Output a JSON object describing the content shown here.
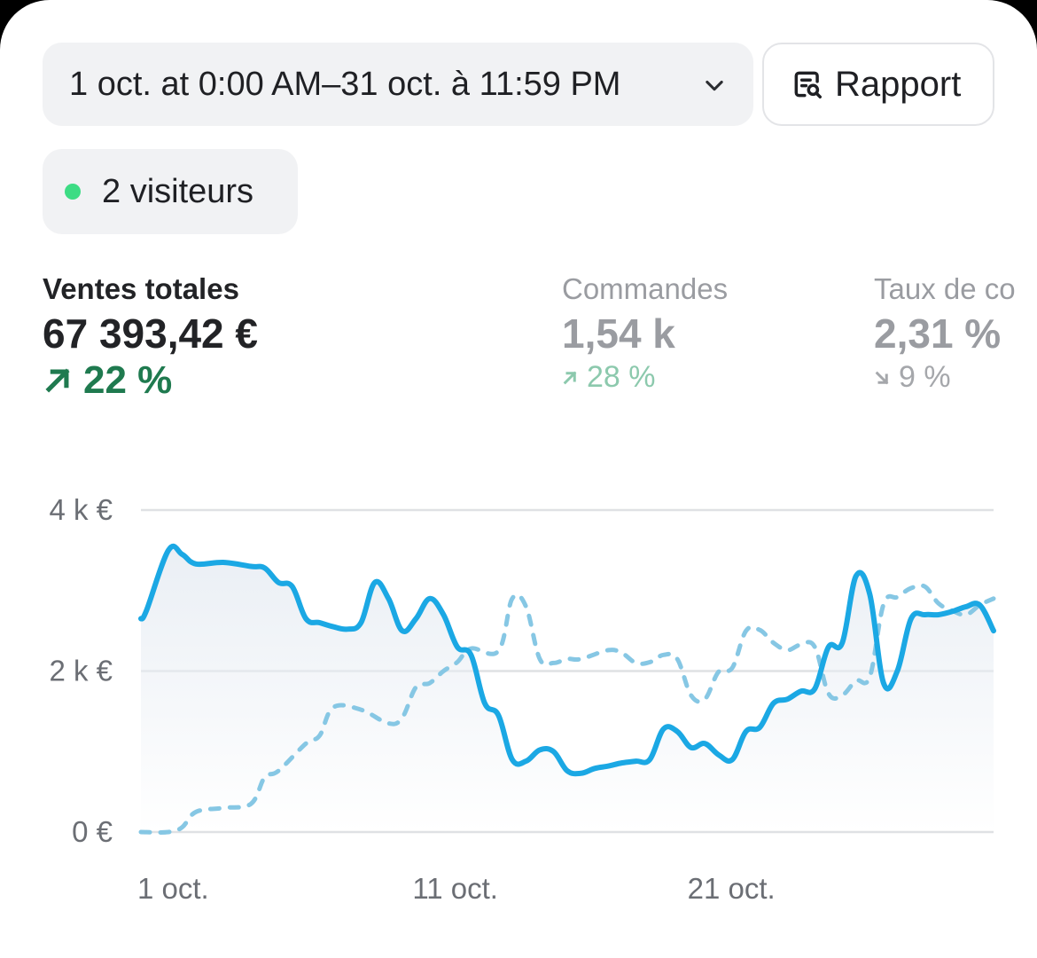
{
  "header": {
    "date_range": "1 oct. at 0:00 AM–31 oct. à 11:59 PM",
    "report_label": "Rapport",
    "report_icon": "report-search-icon",
    "dropdown_icon": "chevron-down-icon"
  },
  "visitors": {
    "label": "2 visiteurs",
    "status_color": "#3ddc84"
  },
  "metrics": [
    {
      "title": "Ventes totales",
      "value": "67 393,42 €",
      "change": "22 %",
      "direction": "up"
    },
    {
      "title": "Commandes",
      "value": "1,54 k",
      "change": "28 %",
      "direction": "up"
    },
    {
      "title": "Taux de co",
      "value": "2,31 %",
      "change": "9 %",
      "direction": "down"
    }
  ],
  "chart_data": {
    "type": "line",
    "title": "",
    "xlabel": "",
    "ylabel": "",
    "y_ticks": [
      "0 €",
      "2 k €",
      "4 k €"
    ],
    "x_ticks": [
      "1 oct.",
      "11 oct.",
      "21 oct."
    ],
    "ylim": [
      0,
      4000
    ],
    "xlim": [
      1,
      32
    ],
    "grid": true,
    "legend": "none",
    "colors": {
      "current": "#1ba8e4",
      "previous": "#86c7e4",
      "area": "#e9eef4"
    },
    "series": [
      {
        "id": "current",
        "style": "solid",
        "x": [
          1,
          1.2,
          2,
          2.5,
          3,
          4,
          5,
          5.5,
          6,
          6.5,
          7,
          7.5,
          8,
          8.5,
          9,
          9.5,
          10,
          10.5,
          11,
          11.5,
          12,
          12.5,
          13,
          13.5,
          14,
          14.5,
          15,
          15.5,
          16,
          16.5,
          17,
          17.5,
          18,
          18.5,
          19,
          19.5,
          20,
          20.5,
          21,
          21.5,
          22,
          22.5,
          23,
          23.5,
          24,
          24.5,
          25,
          25.5,
          26,
          26.5,
          27,
          27.5,
          28,
          28.5,
          29,
          29.5,
          30,
          30.5,
          31,
          31.5,
          32
        ],
        "y": [
          2650,
          2750,
          3500,
          3450,
          3330,
          3350,
          3300,
          3280,
          3100,
          3050,
          2650,
          2600,
          2550,
          2520,
          2600,
          3100,
          2900,
          2500,
          2650,
          2900,
          2700,
          2300,
          2200,
          1600,
          1450,
          900,
          880,
          1020,
          1000,
          760,
          730,
          790,
          820,
          860,
          880,
          900,
          1280,
          1250,
          1050,
          1100,
          960,
          900,
          1250,
          1300,
          1600,
          1650,
          1750,
          1780,
          2300,
          2350,
          3180,
          2950,
          1850,
          2000,
          2650,
          2700,
          2700,
          2740,
          2800,
          2820,
          2500
        ]
      },
      {
        "id": "previous",
        "style": "dashed",
        "x": [
          1,
          2,
          2.5,
          3,
          4,
          5,
          5.5,
          6,
          7,
          7.5,
          8,
          9,
          10,
          10.5,
          11,
          11.5,
          12,
          12.5,
          13,
          14,
          14.5,
          15,
          15.5,
          16,
          16.5,
          17,
          18,
          18.5,
          19,
          19.5,
          20,
          20.5,
          21,
          21.5,
          22,
          22.5,
          23,
          23.5,
          24,
          24.5,
          25,
          25.5,
          26,
          26.5,
          27,
          27.5,
          28,
          28.5,
          29,
          29.5,
          30,
          30.5,
          31,
          31.5,
          32
        ],
        "y": [
          0,
          0,
          60,
          250,
          300,
          350,
          680,
          760,
          1100,
          1200,
          1550,
          1520,
          1350,
          1420,
          1800,
          1850,
          2000,
          2110,
          2280,
          2250,
          2900,
          2800,
          2150,
          2100,
          2150,
          2150,
          2260,
          2220,
          2100,
          2110,
          2200,
          2150,
          1700,
          1650,
          1990,
          2040,
          2500,
          2510,
          2350,
          2260,
          2330,
          2300,
          1720,
          1700,
          1880,
          1930,
          2830,
          2920,
          3030,
          3050,
          2840,
          2750,
          2700,
          2820,
          2900
        ]
      }
    ]
  }
}
